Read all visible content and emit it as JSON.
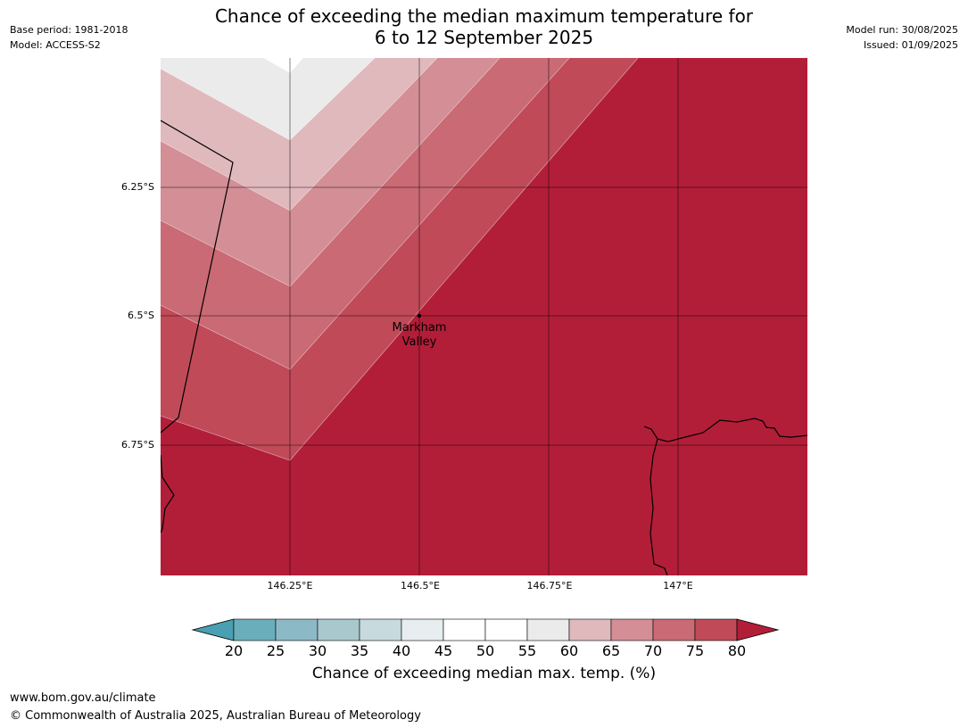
{
  "header": {
    "title_line1": "Chance of exceeding the median maximum temperature for",
    "title_line2": "6 to 12 September 2025",
    "base_period": "Base period: 1981-2018",
    "model": "Model: ACCESS-S2",
    "model_run": "Model run: 30/08/2025",
    "issued": "Issued: 01/09/2025"
  },
  "map": {
    "lat_ticks": [
      "6.25°S",
      "6.5°S",
      "6.75°S"
    ],
    "lon_ticks": [
      "146.25°E",
      "146.5°E",
      "146.75°E",
      "147°E"
    ],
    "place_label_line1": "Markham",
    "place_label_line2": "Valley"
  },
  "colorbar": {
    "labels": [
      "20",
      "25",
      "30",
      "35",
      "40",
      "45",
      "50",
      "55",
      "60",
      "65",
      "70",
      "75",
      "80"
    ],
    "colors": [
      "#4aa0b2",
      "#6aaebc",
      "#8cb9c6",
      "#a9c8ce",
      "#c7dadd",
      "#e8eef0",
      "#ffffff",
      "#ffffff",
      "#ecebec",
      "#e0b9bd",
      "#d48e96",
      "#ca6a74",
      "#c04a58",
      "#b21e38"
    ],
    "title": "Chance of exceeding median max. temp. (%)"
  },
  "footer": {
    "url": "www.bom.gov.au/climate",
    "copyright": "© Commonwealth of Australia 2025, Australian Bureau of Meteorology"
  }
}
